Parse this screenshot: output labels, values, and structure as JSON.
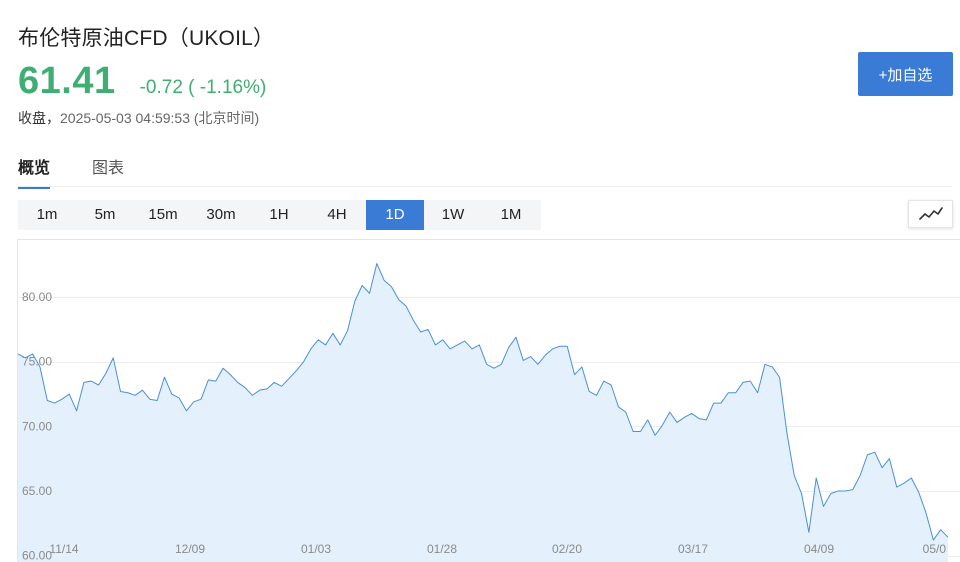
{
  "header": {
    "title": "布伦特原油CFD（UKOIL）",
    "price": "61.41",
    "change": "-0.72 ( -1.16%)",
    "close_label": "收盘，",
    "close_time": "2025-05-03 04:59:53 (北京时间)",
    "watch_button": "+加自选"
  },
  "colors": {
    "price": "#3fae72",
    "accent": "#3a7bd5",
    "line": "#4a90d9",
    "area": "#e4f0fc"
  },
  "tabs": [
    {
      "label": "概览",
      "active": true
    },
    {
      "label": "图表",
      "active": false
    }
  ],
  "periods": [
    {
      "label": "1m",
      "active": false
    },
    {
      "label": "5m",
      "active": false
    },
    {
      "label": "15m",
      "active": false
    },
    {
      "label": "30m",
      "active": false
    },
    {
      "label": "1H",
      "active": false
    },
    {
      "label": "4H",
      "active": false
    },
    {
      "label": "1D",
      "active": true
    },
    {
      "label": "1W",
      "active": false
    },
    {
      "label": "1M",
      "active": false
    }
  ],
  "chart_type_icon": "line-chart-icon",
  "chart_data": {
    "type": "area",
    "ylim": [
      59.5,
      84.5
    ],
    "grid": true,
    "y_ticks": [
      "80.00",
      "75.00",
      "70.00",
      "65.00",
      "60.00"
    ],
    "y_tick_values": [
      80,
      75,
      70,
      65,
      60
    ],
    "x_ticks": [
      "11/14",
      "12/09",
      "01/03",
      "01/28",
      "02/20",
      "03/17",
      "04/09",
      "05/0"
    ],
    "values": [
      75.6,
      75.3,
      75.6,
      74.6,
      72.0,
      71.8,
      72.1,
      72.5,
      71.2,
      73.4,
      73.5,
      73.2,
      74.1,
      75.3,
      72.7,
      72.6,
      72.4,
      72.8,
      72.1,
      72.0,
      73.8,
      72.5,
      72.2,
      71.2,
      71.9,
      72.1,
      73.6,
      73.5,
      74.5,
      74.0,
      73.4,
      73.0,
      72.4,
      72.8,
      72.9,
      73.4,
      73.1,
      73.7,
      74.3,
      75.0,
      76.0,
      76.7,
      76.3,
      77.2,
      76.3,
      77.4,
      79.7,
      80.9,
      80.3,
      82.6,
      81.3,
      80.8,
      79.8,
      79.3,
      78.2,
      77.3,
      77.5,
      76.3,
      76.7,
      76.0,
      76.3,
      76.6,
      76.0,
      76.3,
      74.8,
      74.5,
      74.8,
      76.1,
      76.9,
      75.1,
      75.4,
      74.8,
      75.5,
      76.0,
      76.2,
      76.2,
      74.0,
      74.6,
      72.7,
      72.4,
      73.5,
      73.2,
      71.5,
      71.1,
      69.6,
      69.6,
      70.5,
      69.3,
      70.1,
      71.1,
      70.3,
      70.7,
      71.0,
      70.6,
      70.5,
      71.8,
      71.8,
      72.6,
      72.6,
      73.4,
      73.5,
      72.6,
      74.8,
      74.6,
      73.8,
      69.5,
      66.2,
      64.8,
      61.8,
      66.0,
      63.8,
      64.8,
      65.0,
      65.0,
      65.1,
      66.2,
      67.8,
      68.0,
      66.8,
      67.5,
      65.3,
      65.6,
      66.0,
      64.9,
      63.3,
      61.2,
      62.0,
      61.41
    ]
  }
}
